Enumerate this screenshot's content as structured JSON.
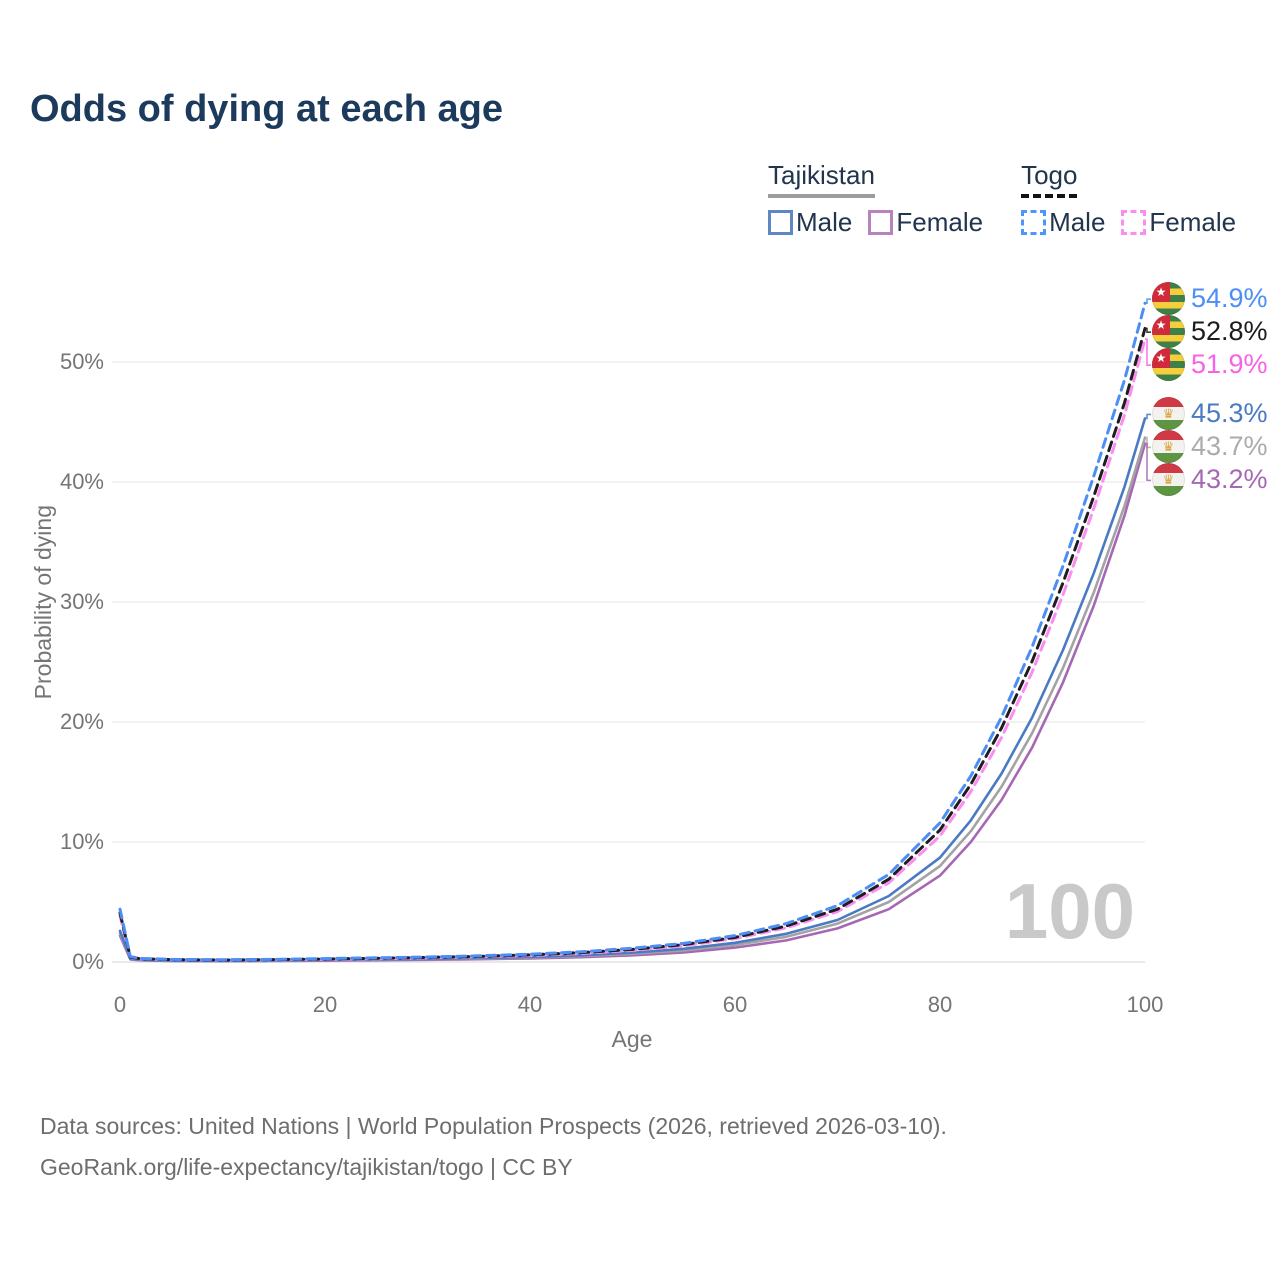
{
  "title": "Odds of dying at each age",
  "watermark": "100",
  "legend": {
    "groups": [
      {
        "name": "Tajikistan",
        "underline": {
          "style": "solid",
          "color": "#9c9c9c"
        },
        "items": [
          {
            "label": "Male",
            "color": "#5d88c4",
            "dash": false
          },
          {
            "label": "Female",
            "color": "#b981bd",
            "dash": false
          }
        ]
      },
      {
        "name": "Togo",
        "underline": {
          "style": "dashed",
          "color": "#141414"
        },
        "items": [
          {
            "label": "Male",
            "color": "#4d94fb",
            "dash": true
          },
          {
            "label": "Female",
            "color": "#fb8df1",
            "dash": true
          }
        ]
      }
    ]
  },
  "chart_data": {
    "type": "line",
    "title": "Odds of dying at each age",
    "xlabel": "Age",
    "ylabel": "Probability of dying",
    "xlim": [
      0,
      100
    ],
    "ylim": [
      0,
      56
    ],
    "grid": true,
    "legend_position": "top-right",
    "xticks": [
      0,
      20,
      40,
      60,
      80,
      100
    ],
    "yticks": [
      {
        "v": 0,
        "label": "0%"
      },
      {
        "v": 10,
        "label": "10%"
      },
      {
        "v": 20,
        "label": "20%"
      },
      {
        "v": 30,
        "label": "30%"
      },
      {
        "v": 40,
        "label": "40%"
      },
      {
        "v": 50,
        "label": "50%"
      }
    ],
    "ages": [
      0,
      1,
      2,
      5,
      10,
      15,
      20,
      25,
      30,
      35,
      40,
      45,
      50,
      55,
      60,
      65,
      70,
      75,
      80,
      83,
      86,
      89,
      92,
      95,
      98,
      100
    ],
    "series": [
      {
        "name": "Tajikistan Female",
        "country": "Tajikistan",
        "sex": "Female",
        "color": "#a668b4",
        "dash": false,
        "values": [
          2.2,
          0.22,
          0.14,
          0.08,
          0.07,
          0.085,
          0.11,
          0.14,
          0.18,
          0.23,
          0.3,
          0.4,
          0.56,
          0.8,
          1.2,
          1.8,
          2.8,
          4.4,
          7.2,
          10.0,
          13.5,
          17.9,
          23.3,
          29.7,
          37.2,
          43.2
        ]
      },
      {
        "name": "Tajikistan (both sexes)",
        "country": "Tajikistan",
        "sex": "All",
        "color": "#a3a3a3",
        "dash": false,
        "values": [
          2.4,
          0.26,
          0.16,
          0.095,
          0.085,
          0.11,
          0.145,
          0.18,
          0.23,
          0.29,
          0.37,
          0.49,
          0.68,
          0.97,
          1.42,
          2.1,
          3.2,
          5.0,
          8.0,
          10.9,
          14.6,
          19.1,
          24.5,
          30.8,
          38.0,
          43.7
        ]
      },
      {
        "name": "Tajikistan Male",
        "country": "Tajikistan",
        "sex": "Male",
        "color": "#4a7ac1",
        "dash": false,
        "values": [
          2.6,
          0.28,
          0.18,
          0.11,
          0.1,
          0.13,
          0.17,
          0.21,
          0.26,
          0.33,
          0.42,
          0.56,
          0.78,
          1.1,
          1.6,
          2.35,
          3.5,
          5.5,
          8.7,
          11.8,
          15.7,
          20.4,
          26.0,
          32.4,
          39.6,
          45.3
        ]
      },
      {
        "name": "Togo Female",
        "country": "Togo",
        "sex": "Female",
        "color": "#fb8df1",
        "dash": true,
        "values": [
          3.85,
          0.38,
          0.25,
          0.18,
          0.15,
          0.18,
          0.22,
          0.27,
          0.34,
          0.43,
          0.54,
          0.71,
          0.97,
          1.35,
          1.95,
          2.85,
          4.2,
          6.6,
          10.5,
          14.2,
          18.7,
          24.2,
          30.6,
          37.8,
          45.6,
          51.9
        ]
      },
      {
        "name": "Togo (both sexes)",
        "country": "Togo",
        "sex": "All",
        "color": "#1e1e1e",
        "dash": true,
        "values": [
          4.1,
          0.41,
          0.27,
          0.2,
          0.17,
          0.2,
          0.25,
          0.31,
          0.38,
          0.47,
          0.6,
          0.78,
          1.05,
          1.45,
          2.05,
          3.0,
          4.4,
          6.9,
          11.0,
          14.8,
          19.5,
          25.1,
          31.6,
          38.8,
          46.6,
          52.8
        ]
      },
      {
        "name": "Togo Male",
        "country": "Togo",
        "sex": "Male",
        "color": "#4d8ef5",
        "dash": true,
        "values": [
          4.4,
          0.45,
          0.3,
          0.22,
          0.19,
          0.22,
          0.28,
          0.35,
          0.42,
          0.52,
          0.65,
          0.85,
          1.15,
          1.55,
          2.2,
          3.2,
          4.7,
          7.3,
          11.6,
          15.5,
          20.4,
          26.3,
          33.0,
          40.5,
          48.5,
          54.9
        ]
      }
    ],
    "end_labels": [
      {
        "text": "54.9%",
        "value": 54.9,
        "color": "#4d8ef5",
        "flag": "togo",
        "series": "Togo Male"
      },
      {
        "text": "52.8%",
        "value": 52.8,
        "color": "#1c1c1c",
        "flag": "togo",
        "series": "Togo (both sexes)"
      },
      {
        "text": "51.9%",
        "value": 51.9,
        "color": "#f763e6",
        "flag": "togo",
        "series": "Togo Female"
      },
      {
        "text": "45.3%",
        "value": 45.3,
        "color": "#4a7ac1",
        "flag": "tajikistan",
        "series": "Tajikistan Male"
      },
      {
        "text": "43.7%",
        "value": 43.7,
        "color": "#ababab",
        "flag": "tajikistan",
        "series": "Tajikistan (both sexes)"
      },
      {
        "text": "43.2%",
        "value": 43.2,
        "color": "#a668b4",
        "flag": "tajikistan",
        "series": "Tajikistan Female"
      }
    ]
  },
  "footer": {
    "line1": "Data sources: United Nations | World Population Prospects (2026, retrieved 2026-03-10).",
    "line2": "GeoRank.org/life-expectancy/tajikistan/togo | CC BY"
  }
}
